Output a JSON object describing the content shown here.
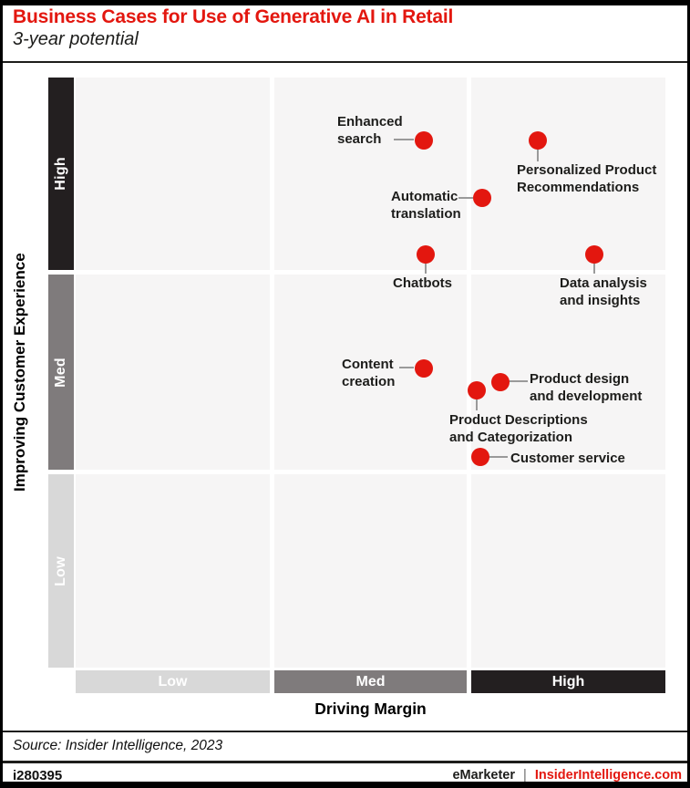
{
  "header": {
    "title": "Business Cases for Use of Generative AI in Retail",
    "subtitle": "3-year potential"
  },
  "colors": {
    "accent_red": "#e3170f",
    "band_high": "#231f20",
    "band_med": "#7f7b7c",
    "band_low": "#d8d8d8",
    "cell_bg": "#f6f5f5"
  },
  "axes": {
    "x_label": "Driving Margin",
    "y_label": "Improving Customer Experience",
    "x_bands": [
      "Low",
      "Med",
      "High"
    ],
    "y_bands": [
      "High",
      "Med",
      "Low"
    ]
  },
  "chart_data": {
    "type": "scatter",
    "title": "Business Cases for Use of Generative AI in Retail",
    "subtitle": "3-year potential",
    "xlabel": "Driving Margin",
    "ylabel": "Improving Customer Experience",
    "x_ticks": [
      "Low",
      "Med",
      "High"
    ],
    "y_ticks": [
      "Low",
      "Med",
      "High"
    ],
    "xlim": [
      0,
      3
    ],
    "ylim": [
      0,
      3
    ],
    "grid": "3x3 quadrant bands, white gutters",
    "legend": "none",
    "marker_color": "#e3170f",
    "points": [
      {
        "name": "Enhanced search",
        "label": "Enhanced\nsearch",
        "x": 1.77,
        "y": 2.68,
        "driving_margin": "Med",
        "customer_experience": "High"
      },
      {
        "name": "Personalized Product Recommendations",
        "label": "Personalized Product\nRecommendations",
        "x": 2.35,
        "y": 2.68,
        "driving_margin": "High",
        "customer_experience": "High"
      },
      {
        "name": "Automatic translation",
        "label": "Automatic\ntranslation",
        "x": 2.07,
        "y": 2.39,
        "driving_margin": "Med-High",
        "customer_experience": "High"
      },
      {
        "name": "Chatbots",
        "label": "Chatbots",
        "x": 1.78,
        "y": 2.1,
        "driving_margin": "Med",
        "customer_experience": "High"
      },
      {
        "name": "Data analysis and insights",
        "label": "Data analysis\nand insights",
        "x": 2.64,
        "y": 2.1,
        "driving_margin": "High",
        "customer_experience": "High"
      },
      {
        "name": "Content creation",
        "label": "Content\ncreation",
        "x": 1.77,
        "y": 1.52,
        "driving_margin": "Med",
        "customer_experience": "Med"
      },
      {
        "name": "Product design and development",
        "label": "Product design\nand development",
        "x": 2.16,
        "y": 1.45,
        "driving_margin": "High",
        "customer_experience": "Med"
      },
      {
        "name": "Product Descriptions and Categorization",
        "label": "Product Descriptions\nand Categorization",
        "x": 2.04,
        "y": 1.41,
        "driving_margin": "Med-High",
        "customer_experience": "Med"
      },
      {
        "name": "Customer service",
        "label": "Customer service",
        "x": 2.06,
        "y": 1.07,
        "driving_margin": "High",
        "customer_experience": "Med"
      }
    ]
  },
  "footer": {
    "source": "Source: Insider Intelligence, 2023",
    "id": "i280395",
    "brand": "eMarketer",
    "separator": "|",
    "site": "InsiderIntelligence.com"
  }
}
